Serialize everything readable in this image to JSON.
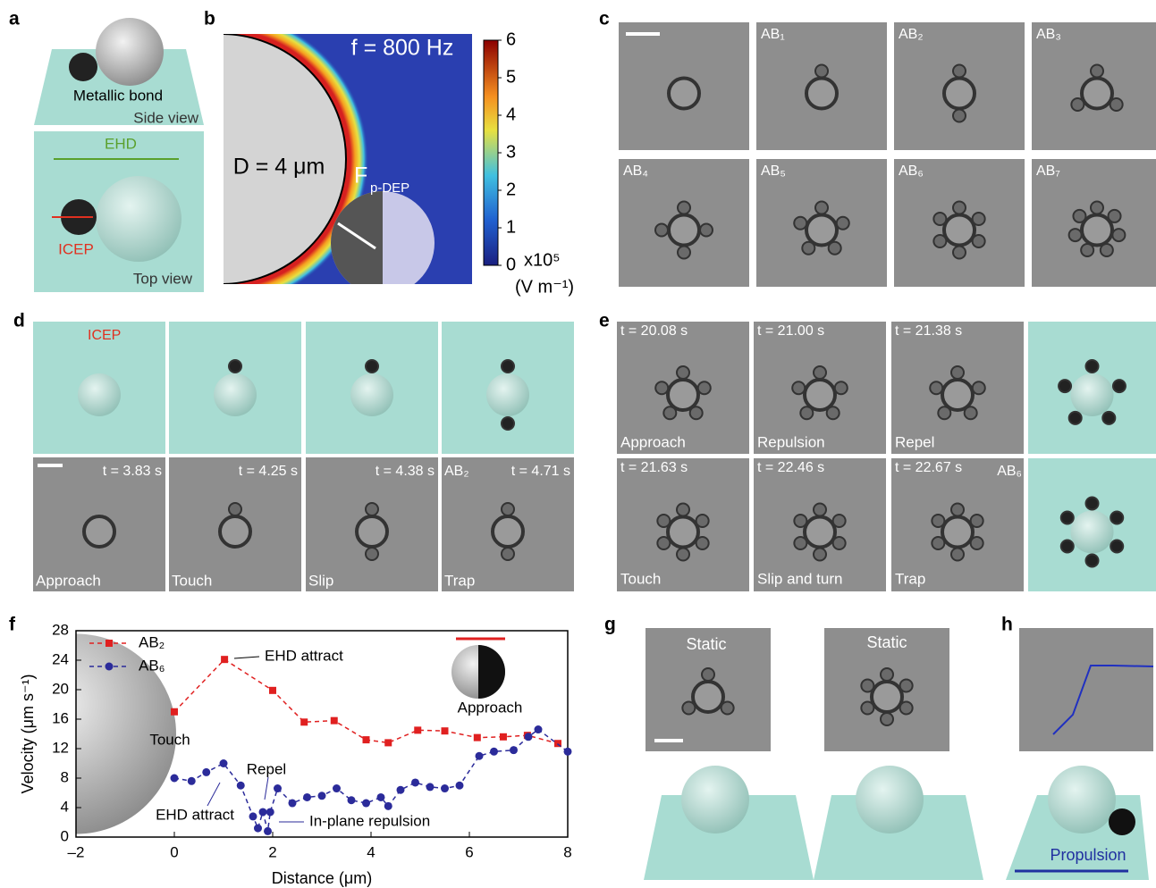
{
  "panels": {
    "a": {
      "label": "a",
      "metallic_bond": "Metallic bond",
      "side_view": "Side view",
      "ehd": "EHD",
      "icep": "ICEP",
      "top_view": "Top view"
    },
    "b": {
      "label": "b",
      "frequency": "f = 800 Hz",
      "diameter": "D = 4 μm",
      "force": "F",
      "force_sub": "p-DEP",
      "colorbar_ticks": [
        0,
        1,
        2,
        3,
        4,
        5,
        6
      ],
      "colorbar_scale": "x10⁵",
      "colorbar_unit": "(V m⁻¹)"
    },
    "c": {
      "label": "c",
      "tiles": [
        "AB₁",
        "AB₂",
        "AB₃",
        "AB₄",
        "AB₅",
        "AB₆",
        "AB₇"
      ]
    },
    "d": {
      "label": "d",
      "icep": "ICEP",
      "times": [
        "t = 3.83 s",
        "t = 4.25 s",
        "t = 4.38 s",
        "t = 4.71 s"
      ],
      "assembly": "AB₂",
      "stages": [
        "Approach",
        "Touch",
        "Slip",
        "Trap"
      ]
    },
    "e": {
      "label": "e",
      "times": [
        "t = 20.08 s",
        "t = 21.00 s",
        "t = 21.38 s",
        "t = 21.63 s",
        "t = 22.46 s",
        "t = 22.67 s"
      ],
      "assembly": "AB₆",
      "stages": [
        "Approach",
        "Repulsion",
        "Repel",
        "Touch",
        "Slip and turn",
        "Trap"
      ]
    },
    "f": {
      "label": "f"
    },
    "g": {
      "label": "g",
      "static_1": "Static",
      "static_2": "Static"
    },
    "h": {
      "label": "h",
      "propulsion": "Propulsion"
    }
  },
  "chart_data": {
    "type": "line",
    "x_label": "Distance (μm)",
    "y_label": "Velocity (μm s⁻¹)",
    "xlim": [
      -2,
      8
    ],
    "xticks": [
      {
        "value": -2,
        "label": "–2"
      },
      0,
      2,
      4,
      6,
      8
    ],
    "ylim": [
      0,
      28
    ],
    "yticks": [
      0,
      4,
      8,
      12,
      16,
      20,
      24,
      28
    ],
    "legend": "upper left",
    "series": [
      {
        "name": "AB₂",
        "color": "#e02020",
        "marker": "square",
        "x": [
          0,
          1.02,
          2.0,
          2.64,
          3.25,
          3.9,
          4.35,
          4.95,
          5.5,
          6.16,
          6.69,
          7.18,
          7.8
        ],
        "values": [
          17,
          24.1,
          19.9,
          15.6,
          15.8,
          13.2,
          12.8,
          14.5,
          14.4,
          13.5,
          13.6,
          13.8,
          12.7
        ]
      },
      {
        "name": "AB₆",
        "color": "#2b2b9a",
        "marker": "circle",
        "x": [
          0,
          0.35,
          0.65,
          1.0,
          1.35,
          1.6,
          1.7,
          1.8,
          1.9,
          1.95,
          2.1,
          2.4,
          2.7,
          3.0,
          3.3,
          3.6,
          3.9,
          4.2,
          4.35,
          4.6,
          4.9,
          5.2,
          5.5,
          5.8,
          6.2,
          6.5,
          6.9,
          7.2,
          7.4,
          8.0
        ],
        "values": [
          8,
          7.6,
          8.8,
          10,
          7,
          2.8,
          1.2,
          3.4,
          0.8,
          3.4,
          6.6,
          4.6,
          5.4,
          5.6,
          6.6,
          5,
          4.6,
          5.4,
          4.2,
          6.4,
          7.4,
          6.8,
          6.6,
          7.0,
          11,
          11.6,
          11.8,
          13.6,
          14.6,
          11.6
        ]
      }
    ],
    "annotations": [
      "EHD attract",
      "Touch",
      "Repel",
      "EHD attract",
      "In-plane repulsion",
      "Approach"
    ]
  }
}
